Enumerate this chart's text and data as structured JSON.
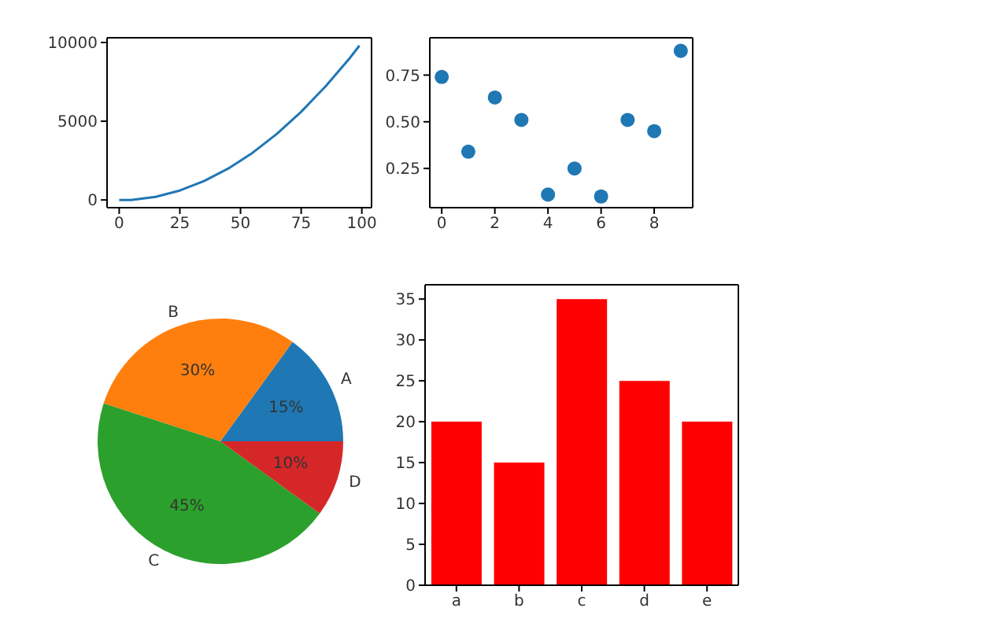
{
  "chart_data": [
    {
      "type": "line",
      "x": [
        0,
        5,
        10,
        15,
        20,
        25,
        30,
        35,
        40,
        45,
        50,
        55,
        60,
        65,
        70,
        75,
        80,
        85,
        90,
        95,
        99
      ],
      "values": [
        0,
        0,
        100,
        200,
        400,
        600,
        900,
        1200,
        1600,
        2000,
        2500,
        3000,
        3600,
        4200,
        4900,
        5600,
        6400,
        7200,
        8100,
        9000,
        9800
      ],
      "color": "#1f77b4",
      "xlim": [
        -5,
        104
      ],
      "ylim": [
        -490,
        10300
      ],
      "xticks": [
        0,
        25,
        50,
        75,
        100
      ],
      "yticks": [
        0,
        5000,
        10000
      ],
      "marker": "none"
    },
    {
      "type": "scatter",
      "x": [
        0,
        1,
        2,
        3,
        4,
        5,
        6,
        7,
        8,
        9
      ],
      "values": [
        0.74,
        0.34,
        0.63,
        0.51,
        0.11,
        0.25,
        0.1,
        0.51,
        0.45,
        0.88
      ],
      "color": "#1f77b4",
      "xlim": [
        -0.45,
        9.45
      ],
      "ylim": [
        0.04,
        0.95
      ],
      "xticks": [
        0,
        2,
        4,
        6,
        8
      ],
      "yticks": [
        {
          "value": 0.25,
          "label": "0.25"
        },
        {
          "value": 0.5,
          "label": "0.50"
        },
        {
          "value": 0.75,
          "label": "0.75"
        }
      ],
      "marker": "circle"
    },
    {
      "type": "pie",
      "categories": [
        "A",
        "B",
        "C",
        "D"
      ],
      "values": [
        15,
        30,
        45,
        10
      ],
      "colors": [
        "#1f77b4",
        "#ff7f0e",
        "#2ca02c",
        "#d62728"
      ],
      "value_labels": [
        "15%",
        "30%",
        "45%",
        "10%"
      ]
    },
    {
      "type": "bar",
      "categories": [
        "a",
        "b",
        "c",
        "d",
        "e"
      ],
      "values": [
        20,
        15,
        35,
        25,
        20
      ],
      "color": "#ff0000",
      "ylim": [
        0,
        36.75
      ],
      "yticks": [
        0,
        5,
        10,
        15,
        20,
        25,
        30,
        35
      ]
    }
  ]
}
